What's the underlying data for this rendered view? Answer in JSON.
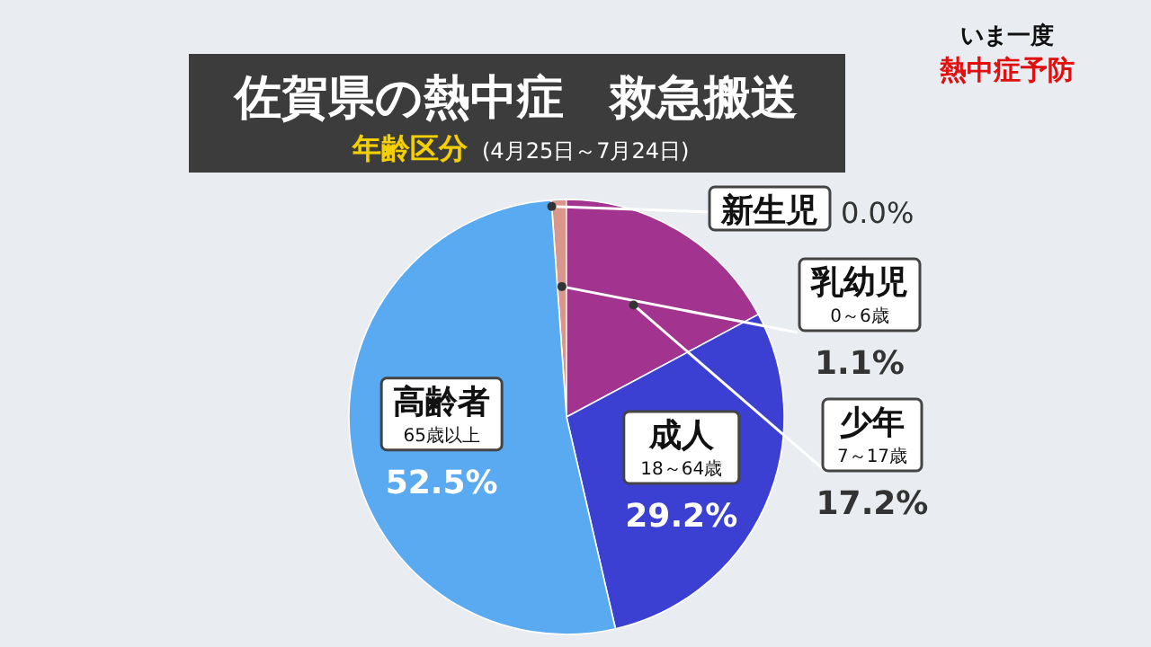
{
  "chart_data": {
    "type": "pie",
    "title": "佐賀県の熱中症　救急搬送",
    "subtitle": "年齢区分",
    "categories": [
      "新生児",
      "乳幼児",
      "少年",
      "成人",
      "高齢者"
    ],
    "values": [
      0.0,
      1.1,
      17.2,
      29.2,
      52.5
    ],
    "colors": [
      "#e0b0a0",
      "#d9968a",
      "#a2338f",
      "#3b3fd2",
      "#5aaaf2"
    ],
    "value_labels": [
      "0.0%",
      "1.1%",
      "17.2%",
      "29.2%",
      "52.5%"
    ],
    "annotations": [
      "(4月25日～7月24日)",
      "いま一度",
      "熱中症予防",
      {
        "text": "0～6歳",
        "x": "乳幼児"
      },
      {
        "text": "7～17歳",
        "x": "少年"
      },
      {
        "text": "18～64歳",
        "x": "成人"
      },
      {
        "text": "65歳以上",
        "x": "高齢者"
      }
    ]
  }
}
